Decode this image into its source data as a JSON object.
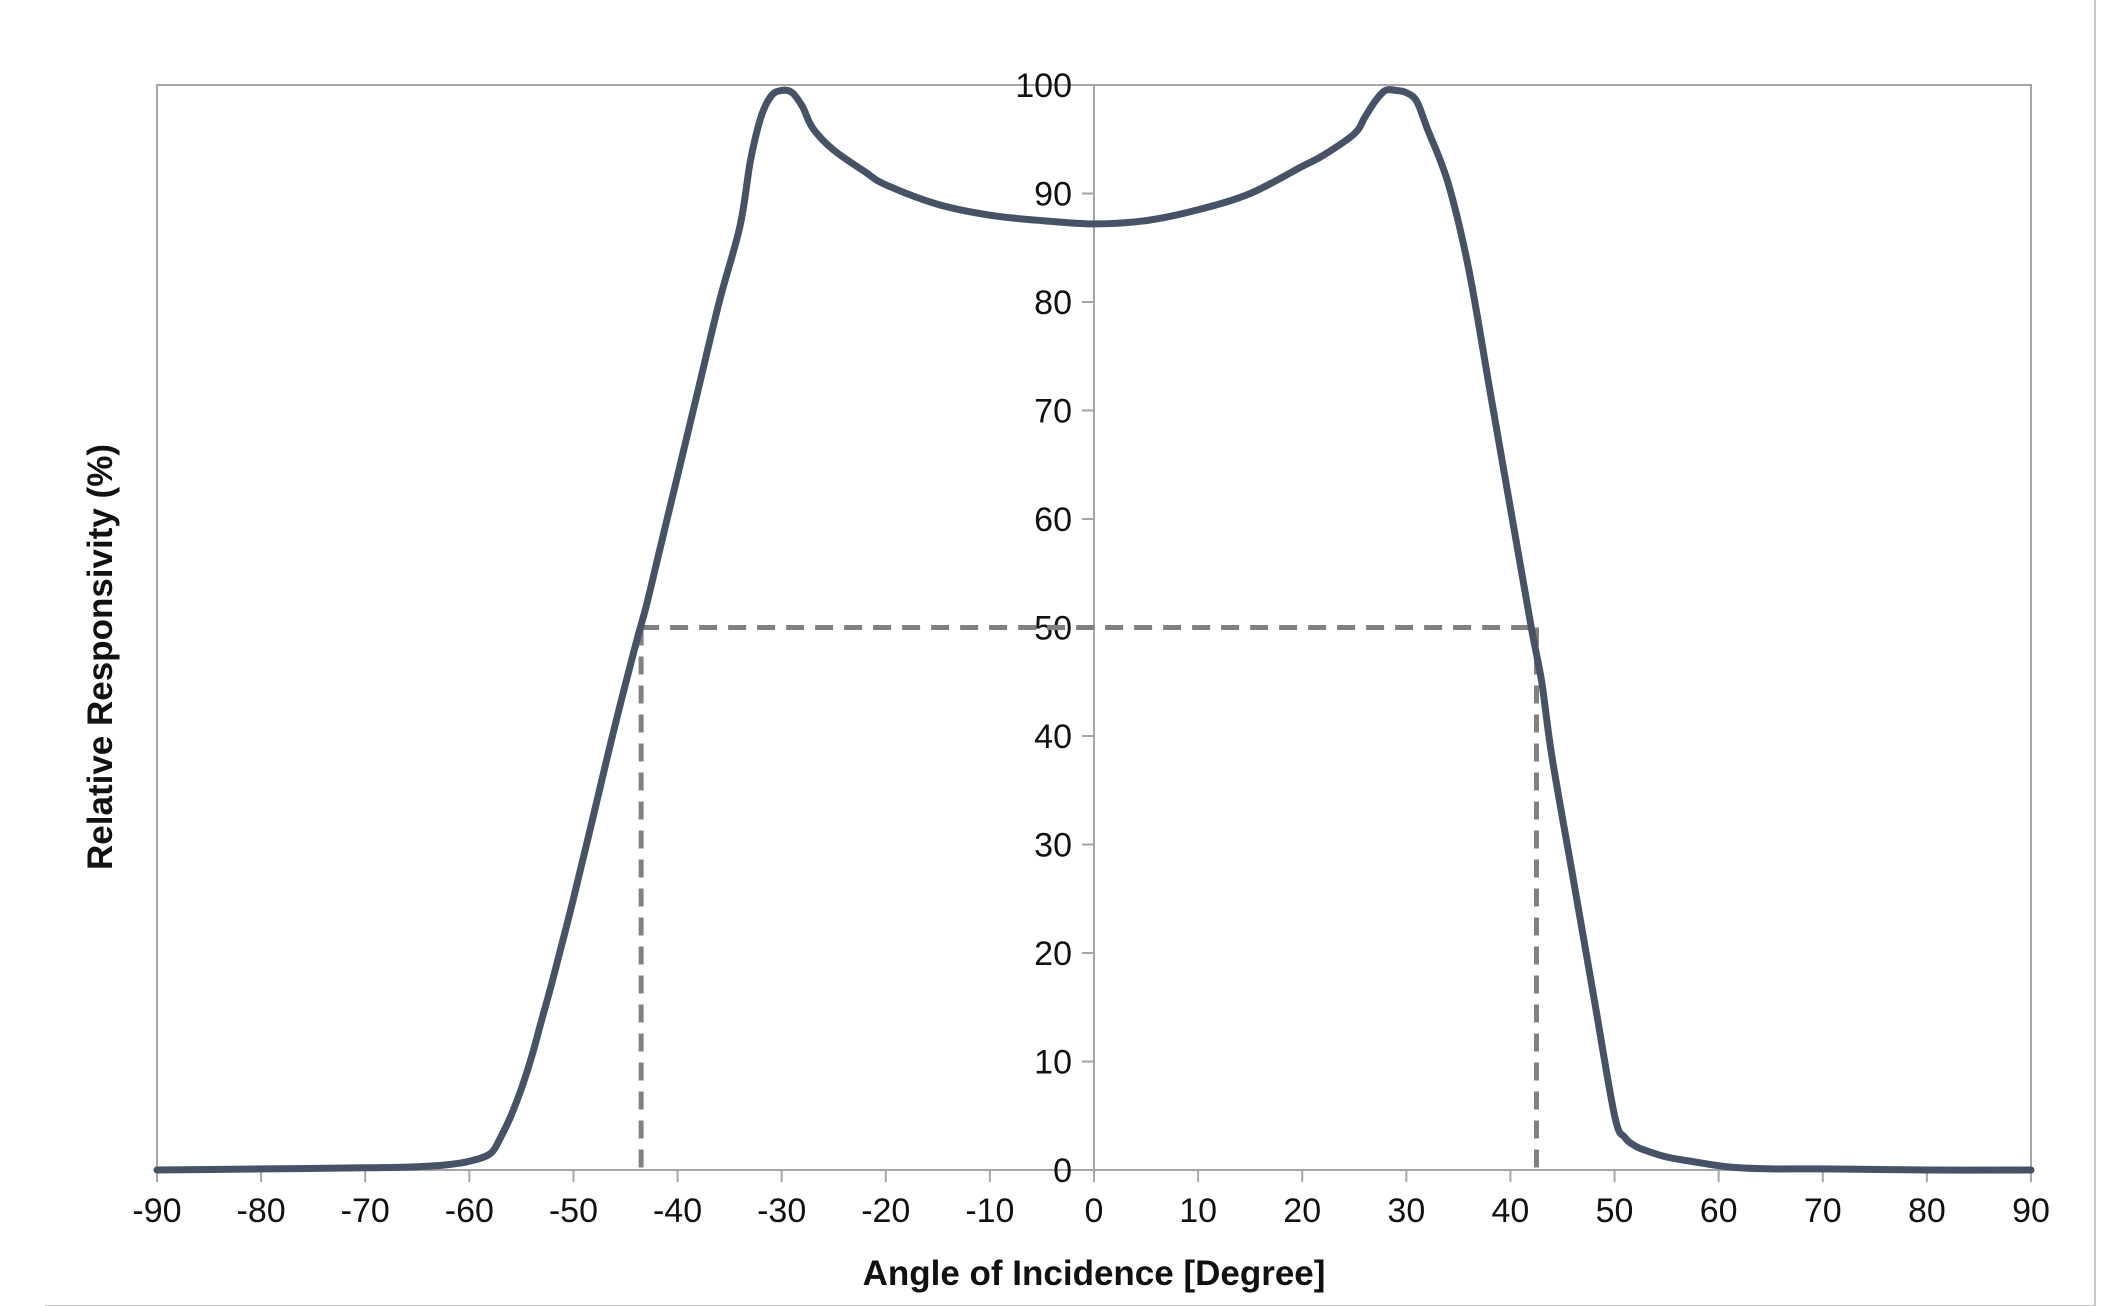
{
  "chart_data": {
    "type": "line",
    "title": "",
    "xlabel": "Angle of Incidence [Degree]",
    "ylabel": "Relative Responsivity (%)",
    "xlim": [
      -90,
      90
    ],
    "ylim": [
      0,
      100
    ],
    "x_ticks": [
      -90,
      -80,
      -70,
      -60,
      -50,
      -40,
      -30,
      -20,
      -10,
      0,
      10,
      20,
      30,
      40,
      50,
      60,
      70,
      80,
      90
    ],
    "y_ticks": [
      0,
      10,
      20,
      30,
      40,
      50,
      60,
      70,
      80,
      90,
      100
    ],
    "grid": false,
    "legend": "none",
    "series": [
      {
        "name": "Relative Responsivity",
        "color": "#465366",
        "x": [
          -90,
          -80,
          -70,
          -65,
          -62,
          -60,
          -58,
          -57,
          -56,
          -55,
          -54,
          -53,
          -52,
          -50,
          -48,
          -46,
          -44,
          -43,
          -42,
          -41,
          -40,
          -38,
          -36,
          -34,
          -33,
          -32,
          -31,
          -30,
          -29,
          -28,
          -27,
          -25,
          -22,
          -20,
          -15,
          -10,
          -5,
          0,
          5,
          10,
          15,
          20,
          22,
          25,
          26,
          27,
          28,
          29,
          30,
          31,
          32,
          34,
          36,
          38,
          40,
          42,
          43,
          44,
          46,
          48,
          50,
          51,
          52,
          53,
          55,
          58,
          60,
          62,
          65,
          70,
          80,
          90
        ],
        "y": [
          0,
          0.1,
          0.2,
          0.3,
          0.5,
          0.8,
          1.5,
          3,
          5,
          7.5,
          10.5,
          14,
          17.5,
          25,
          33,
          41,
          48.5,
          52,
          56,
          60,
          64,
          72,
          80,
          87,
          93,
          97,
          99,
          99.5,
          99.3,
          98,
          96,
          94,
          92,
          90.8,
          89,
          88,
          87.5,
          87.2,
          87.5,
          88.5,
          90,
          92.5,
          93.5,
          95.5,
          97,
          98.5,
          99.5,
          99.5,
          99.3,
          98.5,
          96,
          91,
          83,
          72,
          61,
          50,
          45,
          38,
          27,
          16,
          5,
          3,
          2.2,
          1.8,
          1.2,
          0.7,
          0.4,
          0.2,
          0.1,
          0.1,
          0,
          0
        ]
      }
    ],
    "reference_lines": {
      "level": 50,
      "left_angle": -43.5,
      "right_angle": 42.5,
      "color": "#808080"
    }
  }
}
